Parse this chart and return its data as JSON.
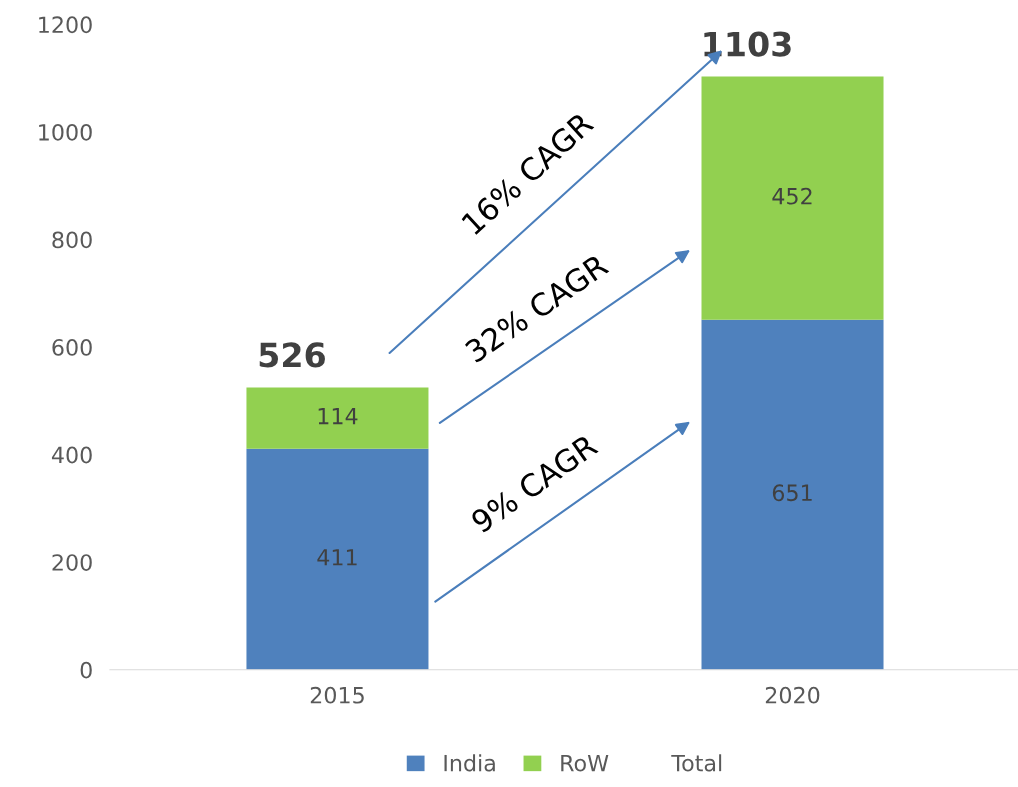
{
  "chart_data": {
    "type": "bar",
    "stacked": true,
    "categories": [
      "2015",
      "2020"
    ],
    "series": [
      {
        "name": "India",
        "color": "#4f81bd",
        "values": [
          411,
          651
        ]
      },
      {
        "name": "RoW",
        "color": "#92d050",
        "values": [
          114,
          452
        ]
      },
      {
        "name": "Total",
        "values": [
          null,
          null
        ]
      }
    ],
    "totals": [
      "526",
      "1103"
    ],
    "data_labels": true,
    "ylim": [
      0,
      1200
    ],
    "yticks": [
      0,
      200,
      400,
      600,
      800,
      1000,
      1200
    ],
    "grid": false,
    "legend": "bottom",
    "annotations": [
      "9% CAGR",
      "32% CAGR",
      "16% CAGR"
    ]
  }
}
